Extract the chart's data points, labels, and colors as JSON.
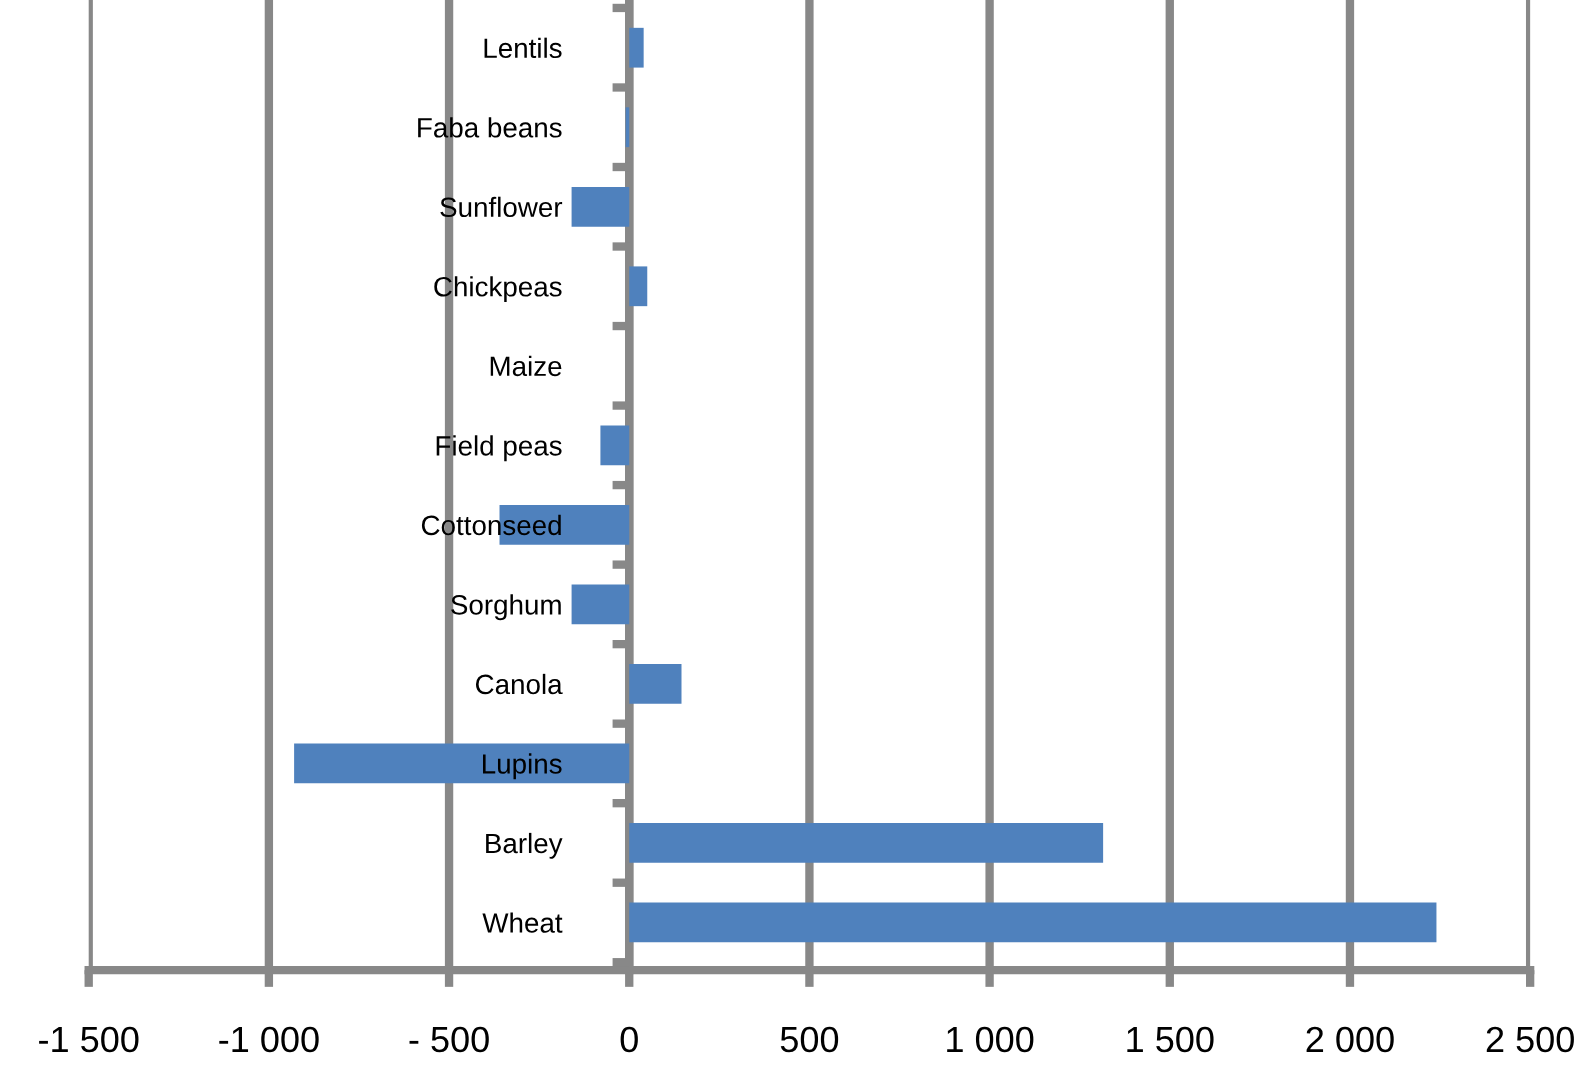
{
  "chart_data": {
    "type": "bar",
    "orientation": "horizontal",
    "categories": [
      "Lentils",
      "Faba beans",
      "Sunflower",
      "Chickpeas",
      "Maize",
      "Field peas",
      "Cottonseed",
      "Sorghum",
      "Canola",
      "Lupins",
      "Barley",
      "Wheat"
    ],
    "values": [
      40,
      -10,
      -160,
      50,
      0,
      -80,
      -360,
      -160,
      145,
      -930,
      1315,
      2240
    ],
    "color": "#4f81bd",
    "xlim": [
      -1500,
      2500
    ],
    "xticks": [
      {
        "value": -1500,
        "label": "-1 500"
      },
      {
        "value": -1000,
        "label": "-1 000"
      },
      {
        "value": -500,
        "label": "- 500"
      },
      0,
      500,
      {
        "value": 1000,
        "label": "1 000"
      },
      {
        "value": 1500,
        "label": "1 500"
      },
      {
        "value": 2000,
        "label": "2 000"
      },
      {
        "value": 2500,
        "label": "2 500"
      }
    ],
    "grid": "x"
  }
}
